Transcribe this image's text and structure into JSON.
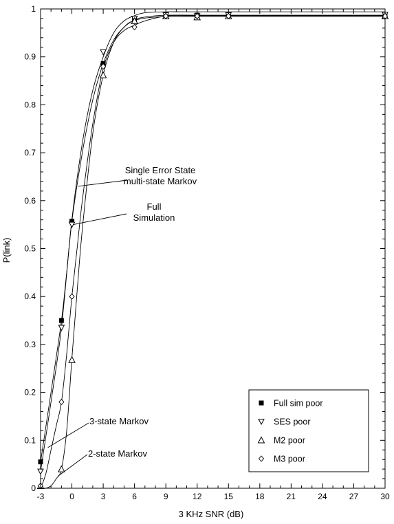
{
  "chart_data": {
    "type": "line",
    "title": "",
    "xlabel": "3 KHz SNR (dB)",
    "ylabel": "P(link)",
    "xlim": [
      -3,
      30
    ],
    "ylim": [
      0,
      1
    ],
    "x_ticks": [
      -3,
      0,
      3,
      6,
      9,
      12,
      15,
      18,
      21,
      24,
      27,
      30
    ],
    "y_ticks": [
      0,
      0.1,
      0.2,
      0.3,
      0.4,
      0.5,
      0.6,
      0.7,
      0.8,
      0.9,
      1
    ],
    "x_tick_labels": [
      "-3",
      "0",
      "3",
      "6",
      "9",
      "12",
      "15",
      "18",
      "21",
      "24",
      "27",
      "30"
    ],
    "y_tick_labels": [
      "0",
      "0.1",
      "0.2",
      "0.3",
      "0.4",
      "0.5",
      "0.6",
      "0.7",
      "0.8",
      "0.9",
      "1"
    ],
    "grid": false,
    "legend_position": "bottom-right",
    "series": [
      {
        "name": "Full sim poor",
        "marker": "filled-square",
        "points": [
          [
            -3,
            0.055
          ],
          [
            -1,
            0.35
          ],
          [
            0,
            0.557
          ],
          [
            3,
            0.886
          ],
          [
            6,
            0.977
          ],
          [
            9,
            0.985
          ],
          [
            12,
            0.987
          ],
          [
            15,
            0.987
          ],
          [
            30,
            0.986
          ]
        ],
        "curve": [
          [
            -3,
            0.055
          ],
          [
            -2,
            0.2
          ],
          [
            -1,
            0.35
          ],
          [
            -0.5,
            0.45
          ],
          [
            0,
            0.557
          ],
          [
            1,
            0.7
          ],
          [
            2,
            0.81
          ],
          [
            3,
            0.886
          ],
          [
            4,
            0.935
          ],
          [
            5,
            0.962
          ],
          [
            6,
            0.977
          ],
          [
            7,
            0.983
          ],
          [
            9,
            0.987
          ],
          [
            12,
            0.987
          ],
          [
            15,
            0.987
          ],
          [
            30,
            0.987
          ]
        ]
      },
      {
        "name": "SES poor",
        "marker": "inverted-triangle",
        "points": [
          [
            -3,
            0.035
          ],
          [
            -1,
            0.335
          ],
          [
            0,
            0.55
          ],
          [
            3,
            0.91
          ],
          [
            6,
            0.98
          ],
          [
            9,
            0.987
          ],
          [
            12,
            0.985
          ],
          [
            15,
            0.987
          ],
          [
            30,
            0.988
          ]
        ],
        "curve": [
          [
            -3,
            0.035
          ],
          [
            -2,
            0.18
          ],
          [
            -1,
            0.335
          ],
          [
            0,
            0.56
          ],
          [
            1,
            0.72
          ],
          [
            2,
            0.83
          ],
          [
            3,
            0.9
          ],
          [
            4,
            0.95
          ],
          [
            5,
            0.975
          ],
          [
            6,
            0.986
          ],
          [
            7,
            0.992
          ],
          [
            9,
            0.994
          ],
          [
            12,
            0.994
          ],
          [
            30,
            0.994
          ]
        ]
      },
      {
        "name": "M2 poor",
        "marker": "triangle",
        "points": [
          [
            -3,
            0.005
          ],
          [
            -1,
            0.04
          ],
          [
            0,
            0.268
          ],
          [
            3,
            0.862
          ],
          [
            6,
            0.975
          ],
          [
            9,
            0.985
          ],
          [
            12,
            0.983
          ],
          [
            15,
            0.985
          ],
          [
            30,
            0.985
          ]
        ],
        "curve": [
          [
            -3,
            0.0
          ],
          [
            -2.5,
            0.0
          ],
          [
            -2,
            0.005
          ],
          [
            -1.5,
            0.02
          ],
          [
            -1,
            0.04
          ],
          [
            -0.5,
            0.12
          ],
          [
            0,
            0.27
          ],
          [
            0.5,
            0.41
          ],
          [
            1,
            0.54
          ],
          [
            2,
            0.74
          ],
          [
            3,
            0.862
          ],
          [
            4,
            0.93
          ],
          [
            5,
            0.962
          ],
          [
            6,
            0.976
          ],
          [
            8,
            0.983
          ],
          [
            12,
            0.984
          ],
          [
            30,
            0.984
          ]
        ]
      },
      {
        "name": "M3 poor",
        "marker": "diamond",
        "points": [
          [
            -3,
            0.005
          ],
          [
            -1,
            0.18
          ],
          [
            0,
            0.4
          ],
          [
            3,
            0.88
          ],
          [
            6,
            0.962
          ],
          [
            9,
            0.985
          ],
          [
            12,
            0.985
          ],
          [
            15,
            0.985
          ],
          [
            30,
            0.985
          ]
        ],
        "curve": [
          [
            -3,
            0.0
          ],
          [
            -2.5,
            0.03
          ],
          [
            -2,
            0.08
          ],
          [
            -1.5,
            0.13
          ],
          [
            -1,
            0.18
          ],
          [
            -0.5,
            0.28
          ],
          [
            0,
            0.4
          ],
          [
            0.5,
            0.5
          ],
          [
            1,
            0.6
          ],
          [
            2,
            0.76
          ],
          [
            3,
            0.875
          ],
          [
            4,
            0.93
          ],
          [
            5,
            0.955
          ],
          [
            6,
            0.966
          ],
          [
            7,
            0.975
          ],
          [
            9,
            0.985
          ],
          [
            12,
            0.986
          ],
          [
            30,
            0.986
          ]
        ]
      }
    ],
    "annotations": [
      {
        "lines": [
          "Single Error State",
          "multi-state Markov"
        ],
        "target": [
          0.6,
          0.63
        ]
      },
      {
        "lines": [
          "Full",
          "Simulation"
        ],
        "target": [
          0.1,
          0.55
        ]
      },
      {
        "lines": [
          "3-state Markov"
        ],
        "target": [
          -2.3,
          0.085
        ]
      },
      {
        "lines": [
          "2-state Markov"
        ],
        "target": [
          -1.35,
          0.025
        ]
      }
    ]
  }
}
